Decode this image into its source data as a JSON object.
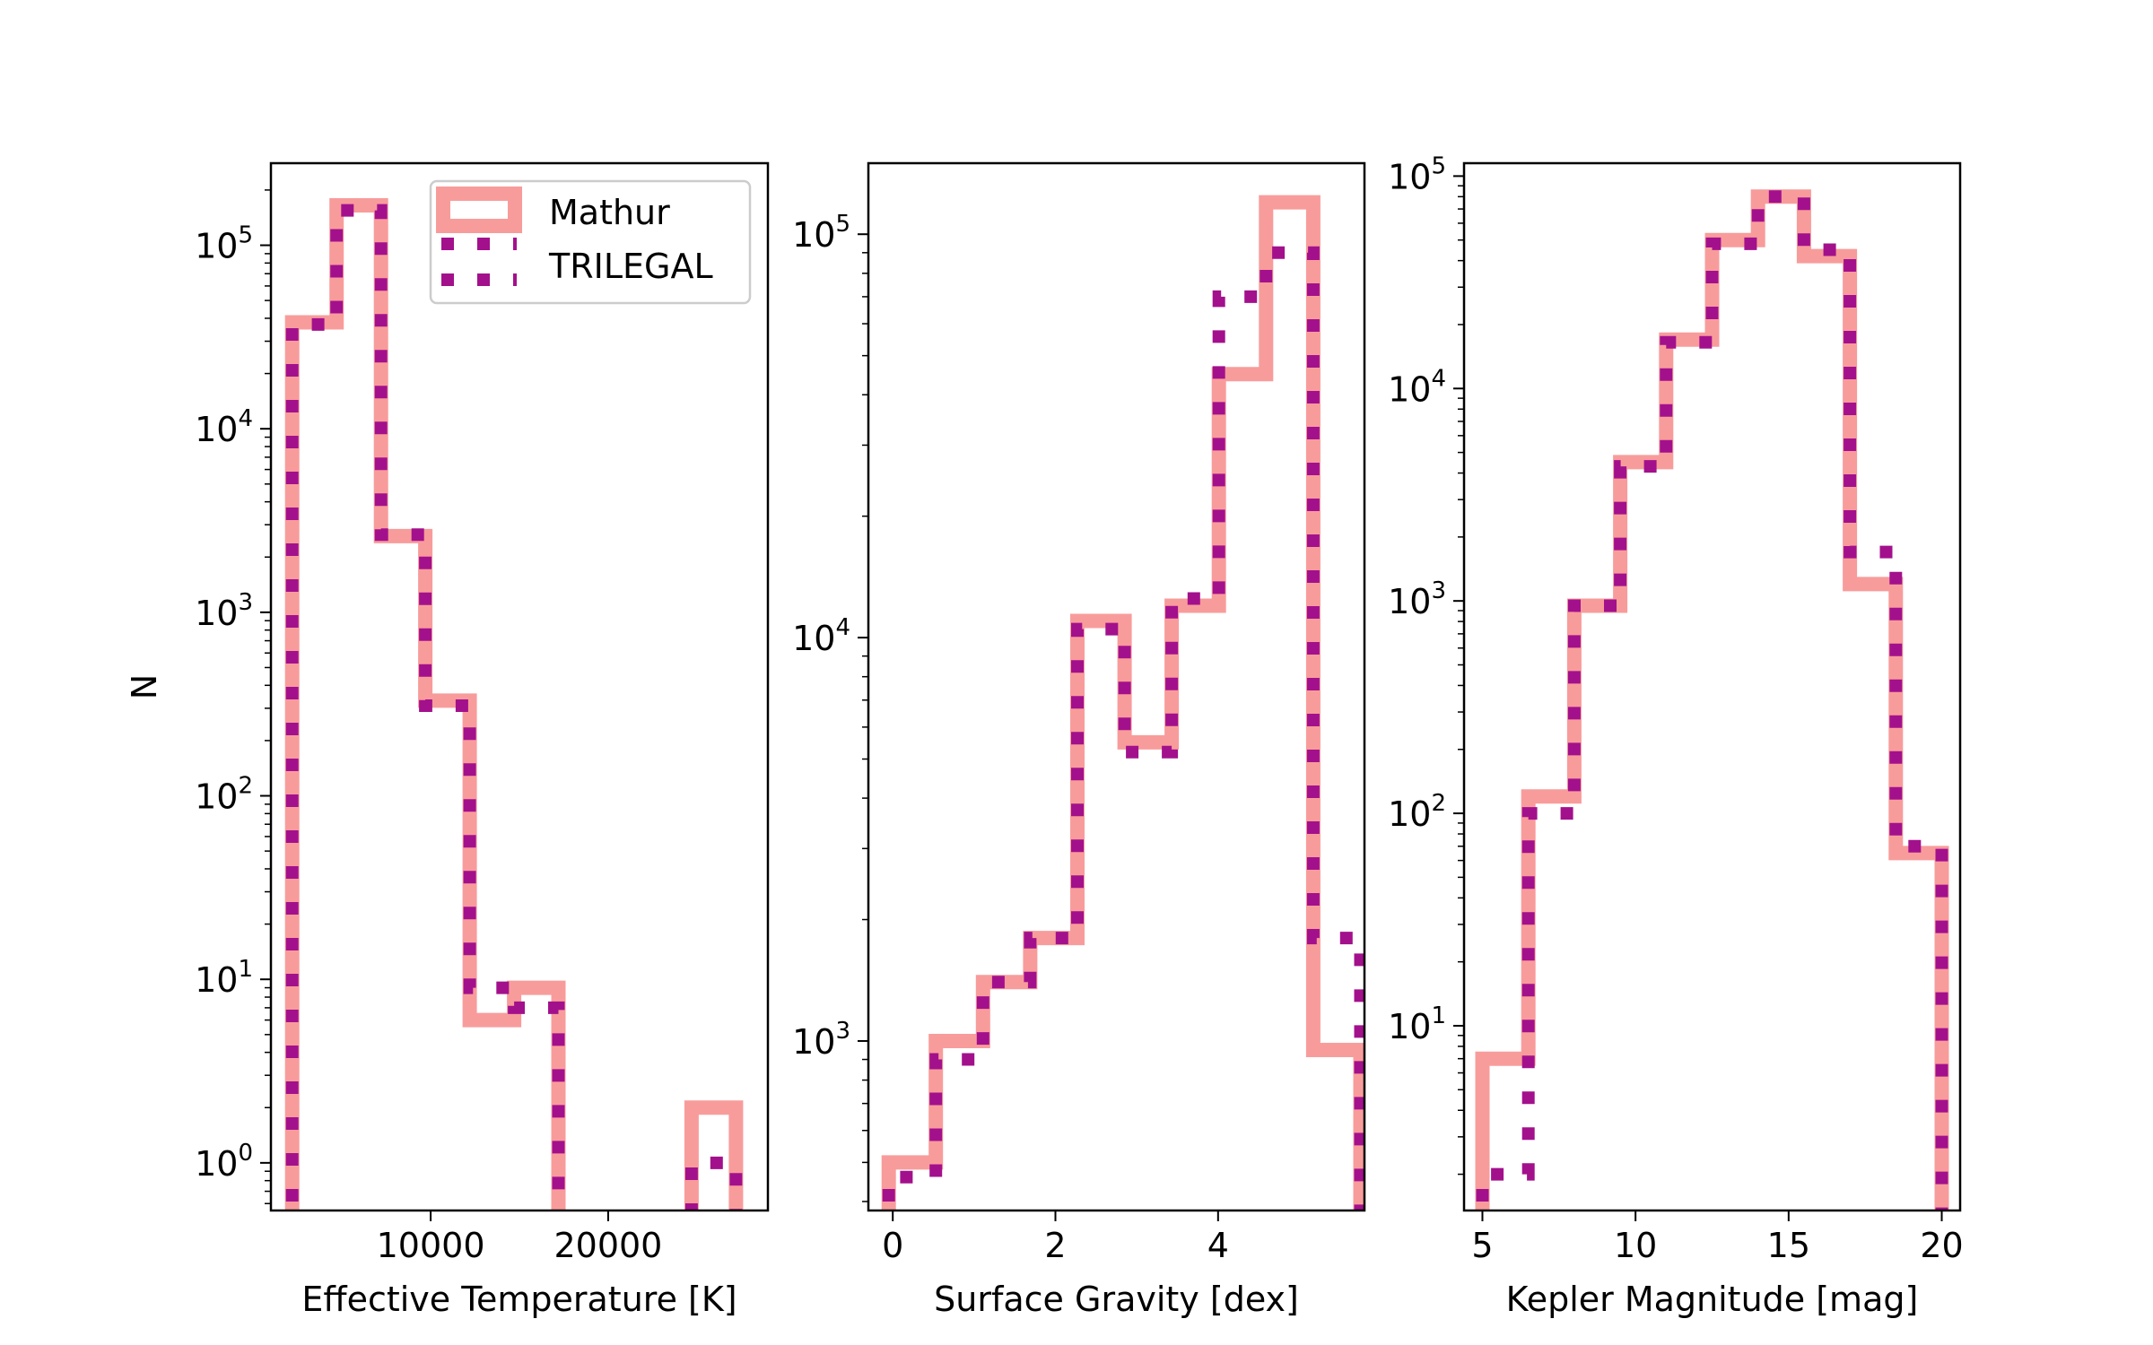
{
  "figure": {
    "legend": {
      "mathur": "Mathur",
      "trilegal": "TRILEGAL"
    },
    "colors": {
      "mathur": "#f89c9b",
      "trilegal": "#a3108c",
      "axes": "#000000",
      "background": "#ffffff"
    }
  },
  "chart_data": [
    {
      "type": "histogram",
      "scale": {
        "x": "linear",
        "y": "log"
      },
      "xlabel": "Effective Temperature [K]",
      "ylabel": "N",
      "xlim": [
        1000,
        29000
      ],
      "ylim": [
        0.55,
        280000
      ],
      "x_ticks": [
        10000,
        20000
      ],
      "x_tick_labels": [
        "10000",
        "20000"
      ],
      "y_ticks": [
        1,
        10,
        100,
        1000,
        10000,
        100000
      ],
      "y_tick_labels": [
        [
          "10",
          "0"
        ],
        [
          "10",
          "1"
        ],
        [
          "10",
          "2"
        ],
        [
          "10",
          "3"
        ],
        [
          "10",
          "4"
        ],
        [
          "10",
          "5"
        ]
      ],
      "legend_position": "upper right",
      "series": [
        {
          "name": "Mathur",
          "style": "solid",
          "edges": [
            2200,
            4700,
            7200,
            9700,
            12200,
            14700,
            17200,
            19700,
            22200,
            24700,
            27200
          ],
          "counts": [
            38000,
            165000,
            2600,
            330,
            6,
            9,
            0,
            0,
            0,
            2
          ]
        },
        {
          "name": "TRILEGAL",
          "style": "dotted",
          "edges": [
            2200,
            4700,
            7200,
            9700,
            12200,
            14700,
            17200,
            19700,
            22200,
            24700,
            27200
          ],
          "counts": [
            37000,
            155000,
            2650,
            310,
            9,
            7,
            0,
            0,
            0,
            1
          ]
        }
      ]
    },
    {
      "type": "histogram",
      "scale": {
        "x": "linear",
        "y": "log"
      },
      "xlabel": "Surface Gravity [dex]",
      "ylabel": "",
      "xlim": [
        -0.3,
        5.8
      ],
      "ylim": [
        380,
        150000
      ],
      "x_ticks": [
        0,
        2,
        4
      ],
      "x_tick_labels": [
        "0",
        "2",
        "4"
      ],
      "y_ticks": [
        1000,
        10000,
        100000
      ],
      "y_tick_labels": [
        [
          "10",
          "3"
        ],
        [
          "10",
          "4"
        ],
        [
          "10",
          "5"
        ]
      ],
      "series": [
        {
          "name": "Mathur",
          "style": "solid",
          "edges": [
            -0.05,
            0.53,
            1.11,
            1.69,
            2.27,
            2.85,
            3.43,
            4.01,
            4.59,
            5.17,
            5.75
          ],
          "counts": [
            500,
            1000,
            1400,
            1800,
            11000,
            5500,
            12000,
            45000,
            120000,
            950
          ]
        },
        {
          "name": "TRILEGAL",
          "style": "dotted",
          "edges": [
            -0.05,
            0.53,
            1.11,
            1.69,
            2.27,
            2.85,
            3.43,
            4.01,
            4.59,
            5.17,
            5.75
          ],
          "counts": [
            460,
            900,
            1400,
            1800,
            10500,
            5200,
            12500,
            70000,
            90000,
            1800
          ]
        }
      ]
    },
    {
      "type": "histogram",
      "scale": {
        "x": "linear",
        "y": "log"
      },
      "xlabel": "Kepler Magnitude [mag]",
      "ylabel": "",
      "xlim": [
        4.4,
        20.6
      ],
      "ylim": [
        1.35,
        115000
      ],
      "x_ticks": [
        5,
        10,
        15,
        20
      ],
      "x_tick_labels": [
        "5",
        "10",
        "15",
        "20"
      ],
      "y_ticks": [
        10,
        100,
        1000,
        10000,
        100000
      ],
      "y_tick_labels": [
        [
          "10",
          "1"
        ],
        [
          "10",
          "2"
        ],
        [
          "10",
          "3"
        ],
        [
          "10",
          "4"
        ],
        [
          "10",
          "5"
        ]
      ],
      "series": [
        {
          "name": "Mathur",
          "style": "solid",
          "edges": [
            5.0,
            6.5,
            8.0,
            9.5,
            11.0,
            12.5,
            14.0,
            15.5,
            17.0,
            18.5,
            20.0
          ],
          "counts": [
            7,
            120,
            950,
            4500,
            17000,
            50000,
            80000,
            42000,
            1200,
            65
          ]
        },
        {
          "name": "TRILEGAL",
          "style": "dotted",
          "edges": [
            5.0,
            6.5,
            8.0,
            9.5,
            11.0,
            12.5,
            14.0,
            15.5,
            17.0,
            18.5,
            20.0
          ],
          "counts": [
            2,
            100,
            950,
            4300,
            16500,
            48000,
            80000,
            45000,
            1700,
            70
          ]
        }
      ]
    }
  ]
}
